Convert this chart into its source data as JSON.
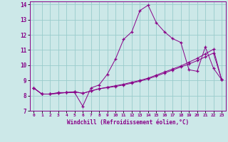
{
  "xlabel": "Windchill (Refroidissement éolien,°C)",
  "bg_color": "#cce8e8",
  "line_color": "#880088",
  "grid_color": "#99cccc",
  "xlim": [
    -0.5,
    23.5
  ],
  "ylim": [
    7,
    14.2
  ],
  "xticks": [
    0,
    1,
    2,
    3,
    4,
    5,
    6,
    7,
    8,
    9,
    10,
    11,
    12,
    13,
    14,
    15,
    16,
    17,
    18,
    19,
    20,
    21,
    22,
    23
  ],
  "yticks": [
    7,
    8,
    9,
    10,
    11,
    12,
    13,
    14
  ],
  "series1_x": [
    0,
    1,
    2,
    3,
    4,
    5,
    6,
    7,
    8,
    9,
    10,
    11,
    12,
    13,
    14,
    15,
    16,
    17,
    18,
    19,
    20,
    21,
    22,
    23
  ],
  "series1_y": [
    8.5,
    8.1,
    8.1,
    8.2,
    8.2,
    8.2,
    7.3,
    8.5,
    8.7,
    9.4,
    10.4,
    11.7,
    12.2,
    13.6,
    13.95,
    12.8,
    12.2,
    11.75,
    11.5,
    9.7,
    9.6,
    11.2,
    9.8,
    9.05
  ],
  "series2_x": [
    0,
    1,
    2,
    3,
    4,
    5,
    6,
    7,
    8,
    9,
    10,
    11,
    12,
    13,
    14,
    15,
    16,
    17,
    18,
    19,
    20,
    21,
    22,
    23
  ],
  "series2_y": [
    8.5,
    8.1,
    8.1,
    8.15,
    8.2,
    8.25,
    8.15,
    8.3,
    8.45,
    8.55,
    8.65,
    8.75,
    8.88,
    9.0,
    9.15,
    9.35,
    9.55,
    9.75,
    9.95,
    10.2,
    10.45,
    10.75,
    11.05,
    9.05
  ],
  "series3_x": [
    0,
    1,
    2,
    3,
    4,
    5,
    6,
    7,
    8,
    9,
    10,
    11,
    12,
    13,
    14,
    15,
    16,
    17,
    18,
    19,
    20,
    21,
    22,
    23
  ],
  "series3_y": [
    8.5,
    8.1,
    8.1,
    8.15,
    8.2,
    8.25,
    8.15,
    8.3,
    8.45,
    8.52,
    8.6,
    8.7,
    8.82,
    8.95,
    9.1,
    9.28,
    9.48,
    9.68,
    9.88,
    10.08,
    10.3,
    10.55,
    10.8,
    9.05
  ]
}
